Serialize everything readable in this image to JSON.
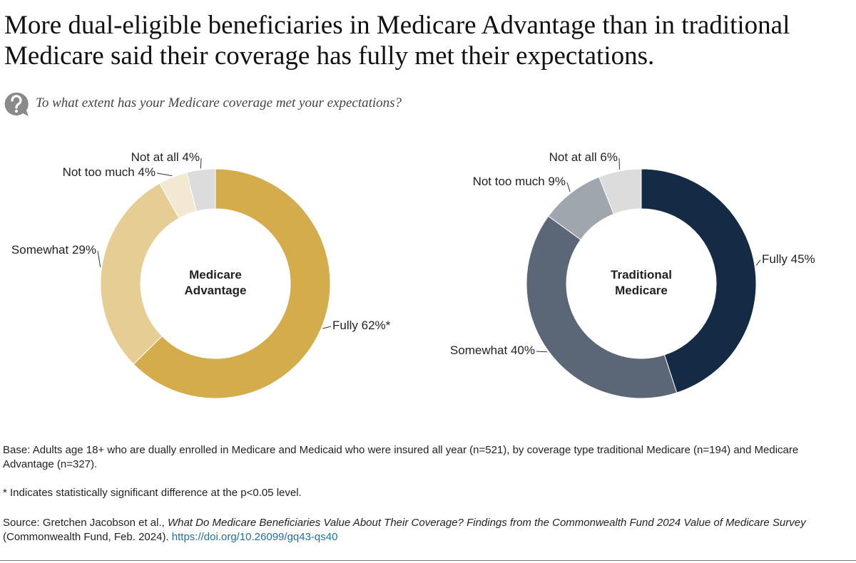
{
  "header": {
    "title": "More dual-eligible beneficiaries in Medicare Advantage than in traditional Medicare said their coverage has fully met their expectations.",
    "question": "To what extent has your Medicare coverage met your expectations?"
  },
  "chart_data": [
    {
      "type": "donut",
      "title": "Medicare Advantage",
      "categories": [
        "Fully",
        "Somewhat",
        "Not too much",
        "Not at all"
      ],
      "values": [
        62,
        29,
        4,
        4
      ],
      "value_labels": [
        "62%*",
        "29%",
        "4%",
        "4%"
      ],
      "colors": [
        "#d4ac4c",
        "#e5cd94",
        "#f3e8d2",
        "#dcdcdc"
      ]
    },
    {
      "type": "donut",
      "title": "Traditional Medicare",
      "categories": [
        "Fully",
        "Somewhat",
        "Not too much",
        "Not at all"
      ],
      "values": [
        45,
        40,
        9,
        6
      ],
      "value_labels": [
        "45%",
        "40%",
        "9%",
        "6%"
      ],
      "colors": [
        "#152a45",
        "#5b6677",
        "#a0a6ae",
        "#dcdcdc"
      ]
    }
  ],
  "notes": {
    "base": "Base: Adults age 18+ who are dually enrolled in Medicare and Medicaid who were insured all year (n=521), by coverage type traditional Medicare (n=194) and Medicare Advantage (n=327).",
    "significance": "* Indicates statistically significant difference at the p<0.05 level.",
    "source_prefix": "Source: Gretchen Jacobson et al., ",
    "source_title": "What Do Medicare Beneficiaries Value About Their Coverage? Findings from the Commonwealth Fund 2024 Value of Medicare Survey",
    "source_suffix": " (Commonwealth Fund, Feb. 2024). ",
    "source_link": "https://doi.org/10.26099/gq43-qs40"
  }
}
